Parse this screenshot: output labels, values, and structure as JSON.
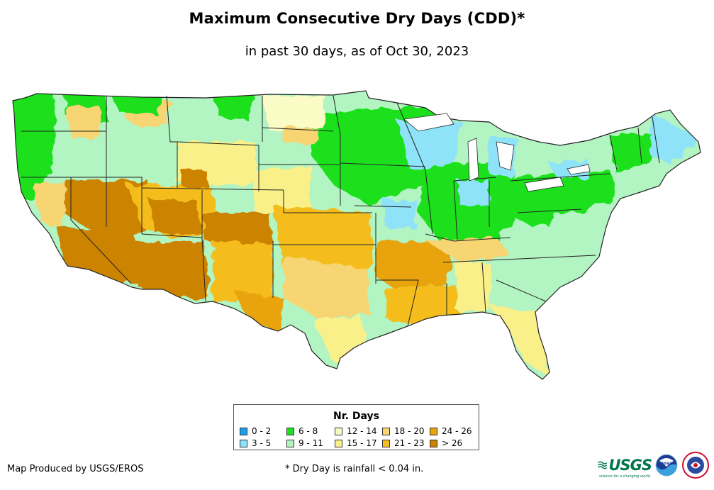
{
  "header": {
    "title": "Maximum Consecutive Dry Days (CDD)*",
    "subtitle": "in past 30 days, as of Oct 30, 2023"
  },
  "legend": {
    "title": "Nr. Days",
    "classes": [
      {
        "label": "0 - 2",
        "color": "#1a9fe8"
      },
      {
        "label": "3 - 5",
        "color": "#8ee3f9"
      },
      {
        "label": "6 - 8",
        "color": "#1ee01e"
      },
      {
        "label": "9 - 11",
        "color": "#b2f4c2"
      },
      {
        "label": "12 - 14",
        "color": "#fbfbc6"
      },
      {
        "label": "15 - 17",
        "color": "#faf08a"
      },
      {
        "label": "18 - 20",
        "color": "#f7d572"
      },
      {
        "label": "21 - 23",
        "color": "#f4bd1e"
      },
      {
        "label": "24 - 26",
        "color": "#e8a30e"
      },
      {
        "label": "> 26",
        "color": "#cc8400"
      }
    ]
  },
  "footer": {
    "credit": "Map Produced by USGS/EROS",
    "footnote": "* Dry Day is rainfall < 0.04 in."
  },
  "logos": {
    "usgs": {
      "text": "USGS",
      "tagline": "science for a changing world",
      "icon": "usgs-wave-icon"
    },
    "noaa": {
      "text": "noaa",
      "icon": "noaa-logo-icon"
    },
    "nws": {
      "icon": "nws-logo-icon"
    }
  }
}
